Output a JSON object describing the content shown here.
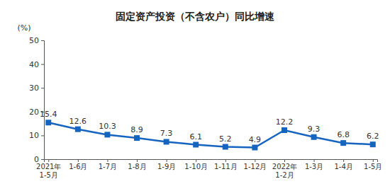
{
  "chart_data": {
    "type": "line",
    "title": "固定资产投资（不含农户）同比增速",
    "y_label": "(%)",
    "categories": [
      "2021年\n1-5月",
      "1-6月",
      "1-7月",
      "1-8月",
      "1-9月",
      "1-10月",
      "1-11月",
      "1-12月",
      "2022年\n1-2月",
      "1-3月",
      "1-4月",
      "1-5月"
    ],
    "values": [
      15.4,
      12.6,
      10.3,
      8.9,
      7.3,
      6.1,
      5.2,
      4.9,
      12.2,
      9.3,
      6.8,
      6.2
    ],
    "color": "#1565c0",
    "marker": "square",
    "line_style": "solid",
    "ylim": [
      0,
      50
    ],
    "yticks": [
      0,
      10,
      20,
      30,
      40,
      50
    ],
    "grid": false,
    "data_labels": true
  }
}
